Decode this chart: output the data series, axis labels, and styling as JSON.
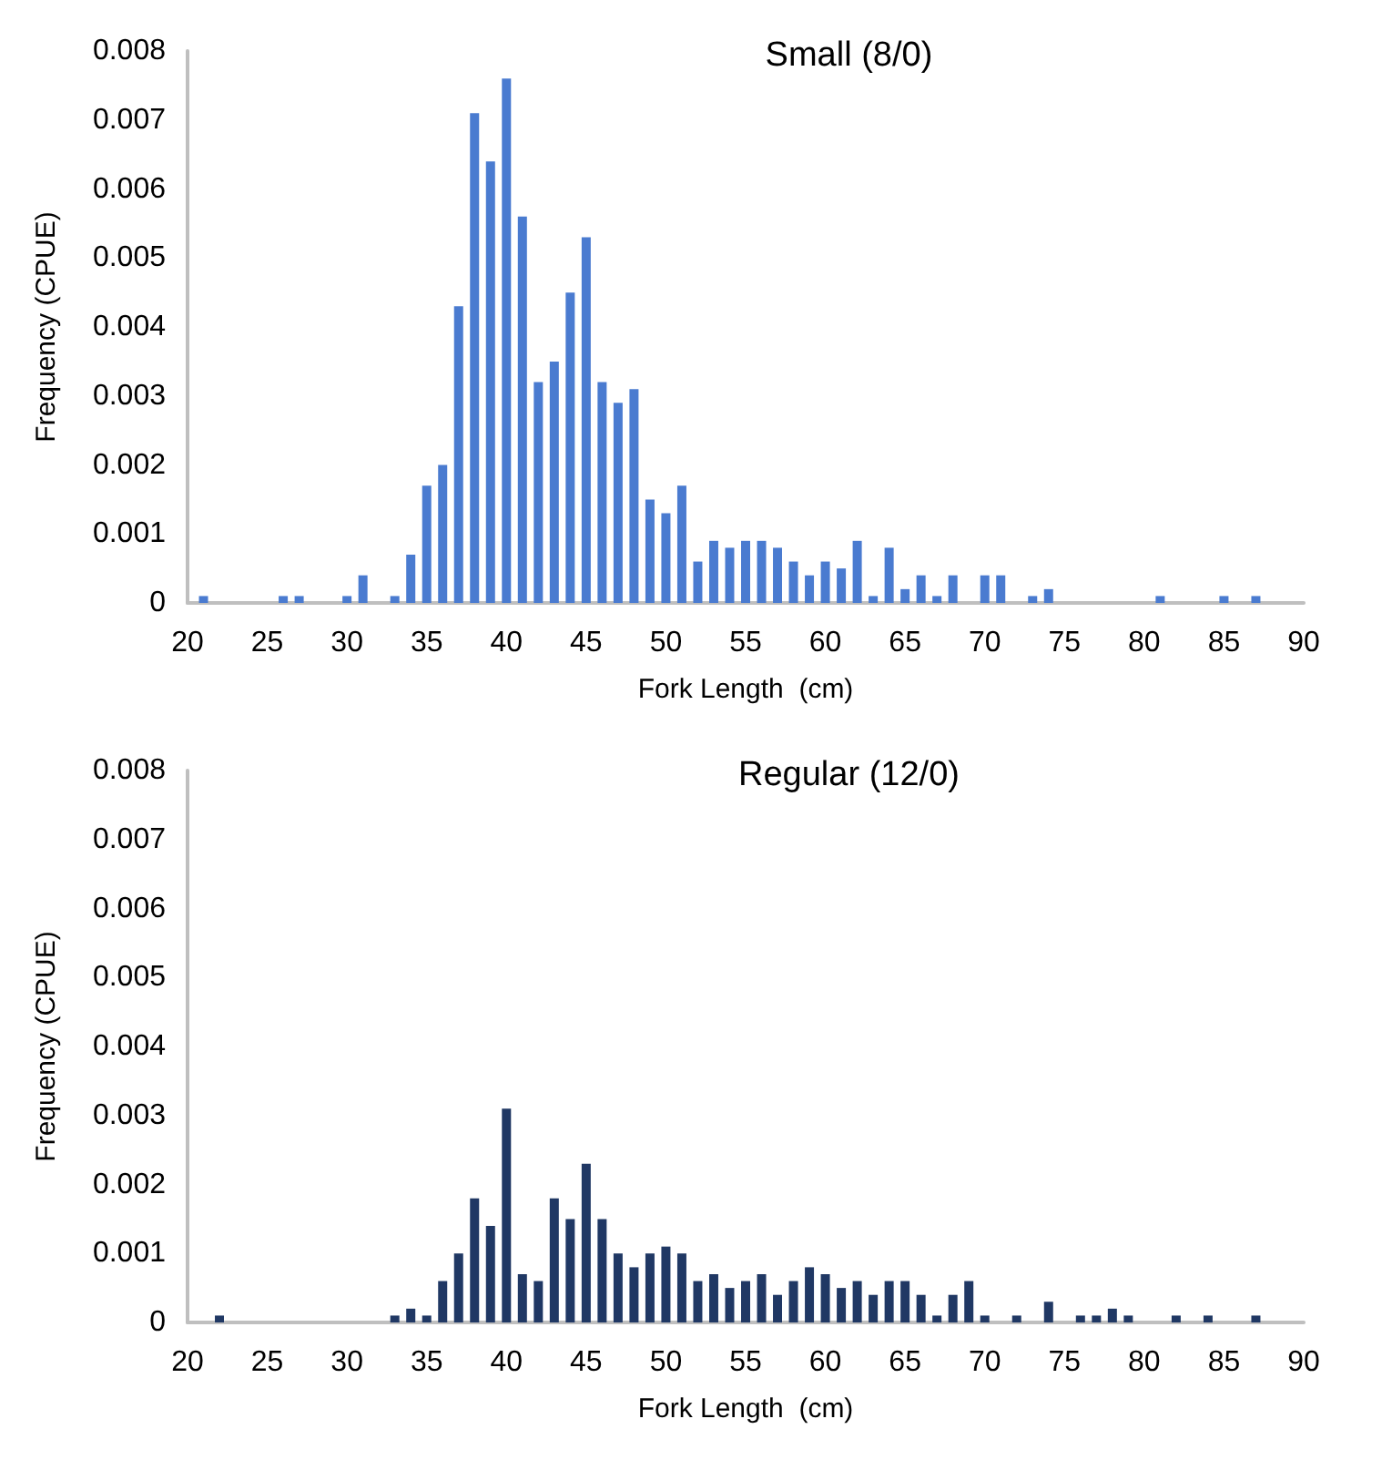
{
  "chart_data": [
    {
      "type": "bar",
      "title": "Small (8/0)",
      "xlabel": "Fork Length  (cm)",
      "ylabel": "Frequency (CPUE)",
      "color": "#4a7bd0",
      "x": [
        21,
        26,
        27,
        30,
        31,
        33,
        34,
        35,
        36,
        37,
        38,
        39,
        40,
        41,
        42,
        43,
        44,
        45,
        46,
        47,
        48,
        49,
        50,
        51,
        52,
        53,
        54,
        55,
        56,
        57,
        58,
        59,
        60,
        61,
        62,
        63,
        64,
        65,
        66,
        67,
        68,
        70,
        71,
        73,
        74,
        81,
        85,
        87
      ],
      "values": [
        0.0001,
        0.0001,
        0.0001,
        0.0001,
        0.0004,
        0.0001,
        0.0007,
        0.0017,
        0.002,
        0.0043,
        0.0071,
        0.0064,
        0.0076,
        0.0056,
        0.0032,
        0.0035,
        0.0045,
        0.0053,
        0.0032,
        0.0029,
        0.0031,
        0.0015,
        0.0013,
        0.0017,
        0.0006,
        0.0009,
        0.0008,
        0.0009,
        0.0009,
        0.0008,
        0.0006,
        0.0004,
        0.0006,
        0.0005,
        0.0009,
        0.0001,
        0.0008,
        0.0002,
        0.0004,
        0.0001,
        0.0004,
        0.0004,
        0.0004,
        0.0001,
        0.0002,
        0.0001,
        0.0001,
        0.0001
      ],
      "xlim": [
        20,
        90
      ],
      "xticks": [
        20,
        25,
        30,
        35,
        40,
        45,
        50,
        55,
        60,
        65,
        70,
        75,
        80,
        85,
        90
      ],
      "ylim": [
        0,
        0.008
      ],
      "yticks": [
        0,
        0.001,
        0.002,
        0.003,
        0.004,
        0.005,
        0.006,
        0.007,
        0.008
      ]
    },
    {
      "type": "bar",
      "title": "Regular (12/0)",
      "xlabel": "Fork Length  (cm)",
      "ylabel": "Frequency (CPUE)",
      "color": "#203864",
      "x": [
        22,
        33,
        34,
        35,
        36,
        37,
        38,
        39,
        40,
        41,
        42,
        43,
        44,
        45,
        46,
        47,
        48,
        49,
        50,
        51,
        52,
        53,
        54,
        55,
        56,
        57,
        58,
        59,
        60,
        61,
        62,
        63,
        64,
        65,
        66,
        67,
        68,
        69,
        70,
        72,
        74,
        76,
        77,
        78,
        79,
        82,
        84,
        87
      ],
      "values": [
        0.0001,
        0.0001,
        0.0002,
        0.0001,
        0.0006,
        0.001,
        0.0018,
        0.0014,
        0.0031,
        0.0007,
        0.0006,
        0.0018,
        0.0015,
        0.0023,
        0.0015,
        0.001,
        0.0008,
        0.001,
        0.0011,
        0.001,
        0.0006,
        0.0007,
        0.0005,
        0.0006,
        0.0007,
        0.0004,
        0.0006,
        0.0008,
        0.0007,
        0.0005,
        0.0006,
        0.0004,
        0.0006,
        0.0006,
        0.0004,
        0.0001,
        0.0004,
        0.0006,
        0.0001,
        0.0001,
        0.0003,
        0.0001,
        0.0001,
        0.0002,
        0.0001,
        0.0001,
        0.0001,
        0.0001
      ],
      "xlim": [
        20,
        90
      ],
      "xticks": [
        20,
        25,
        30,
        35,
        40,
        45,
        50,
        55,
        60,
        65,
        70,
        75,
        80,
        85,
        90
      ],
      "ylim": [
        0,
        0.008
      ],
      "yticks": [
        0,
        0.001,
        0.002,
        0.003,
        0.004,
        0.005,
        0.006,
        0.007,
        0.008
      ]
    }
  ]
}
